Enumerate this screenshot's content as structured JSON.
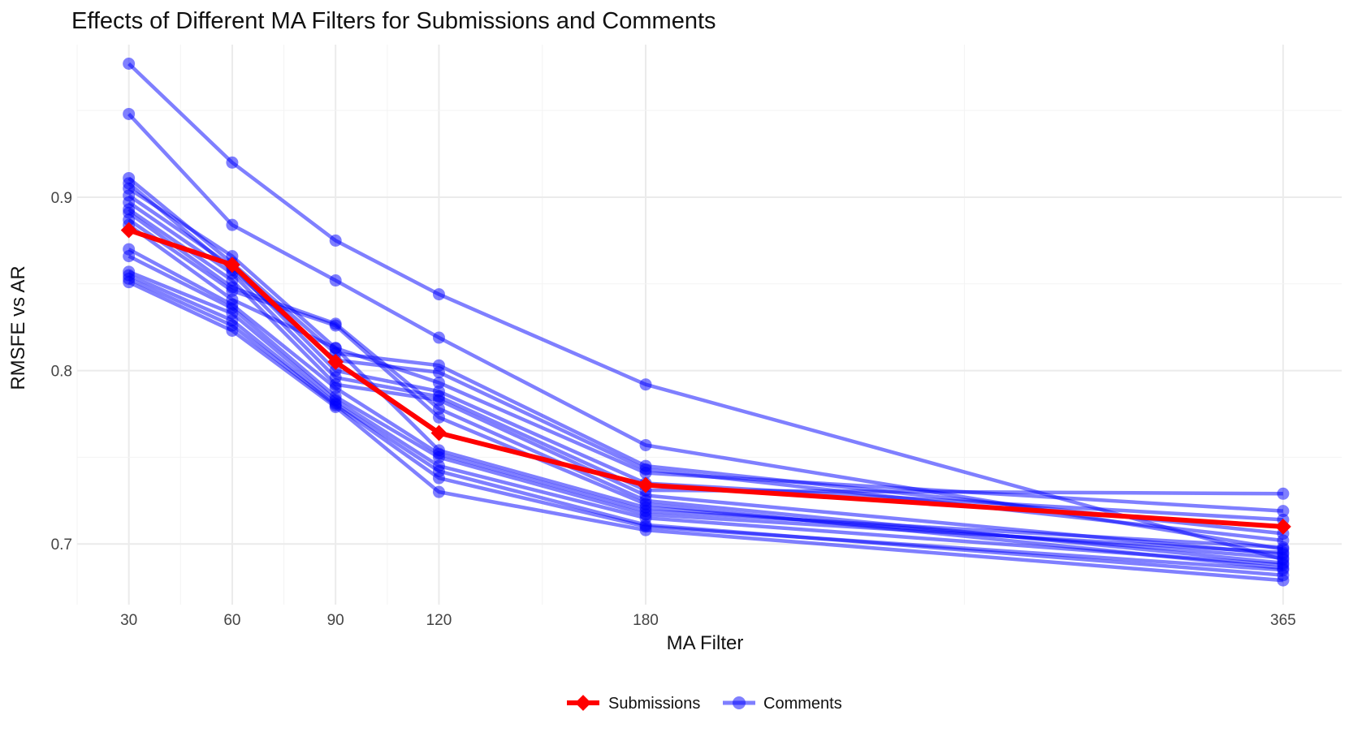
{
  "chart_data": {
    "type": "line",
    "title": "Effects of Different MA Filters for Submissions and Comments",
    "xlabel": "MA Filter",
    "ylabel": "RMSFE vs AR",
    "x": [
      30,
      60,
      90,
      120,
      180,
      365
    ],
    "x_tick_labels": [
      "30",
      "60",
      "90",
      "120",
      "180",
      "365"
    ],
    "xlim": [
      15,
      382
    ],
    "ylim": [
      0.665,
      0.988
    ],
    "y_ticks": [
      0.7,
      0.8,
      0.9
    ],
    "y_tick_labels": [
      "0.7",
      "0.8",
      "0.9"
    ],
    "grid": true,
    "legend_position": "bottom",
    "colors": {
      "submissions": "#ff0000",
      "comments": "#0000ff"
    },
    "submissions": {
      "name": "Submissions",
      "values": [
        0.881,
        0.861,
        0.805,
        0.764,
        0.734,
        0.71
      ]
    },
    "comments": {
      "name": "Comments",
      "series": [
        [
          0.977,
          0.92,
          0.875,
          0.844,
          0.792,
          0.691
        ],
        [
          0.948,
          0.884,
          0.852,
          0.819,
          0.757,
          0.697
        ],
        [
          0.911,
          0.862,
          0.81,
          0.803,
          0.745,
          0.706
        ],
        [
          0.908,
          0.858,
          0.806,
          0.799,
          0.743,
          0.702
        ],
        [
          0.905,
          0.866,
          0.813,
          0.793,
          0.741,
          0.719
        ],
        [
          0.901,
          0.86,
          0.8,
          0.788,
          0.735,
          0.714
        ],
        [
          0.897,
          0.856,
          0.796,
          0.785,
          0.731,
          0.729
        ],
        [
          0.893,
          0.852,
          0.792,
          0.783,
          0.728,
          0.694
        ],
        [
          0.891,
          0.848,
          0.827,
          0.778,
          0.725,
          0.689
        ],
        [
          0.887,
          0.846,
          0.826,
          0.773,
          0.723,
          0.686
        ],
        [
          0.884,
          0.841,
          0.813,
          0.754,
          0.721,
          0.692
        ],
        [
          0.87,
          0.838,
          0.79,
          0.752,
          0.719,
          0.698
        ],
        [
          0.866,
          0.836,
          0.785,
          0.75,
          0.717,
          0.695
        ],
        [
          0.857,
          0.833,
          0.783,
          0.745,
          0.715,
          0.688
        ],
        [
          0.855,
          0.829,
          0.781,
          0.742,
          0.711,
          0.682
        ],
        [
          0.853,
          0.826,
          0.78,
          0.738,
          0.71,
          0.685
        ],
        [
          0.851,
          0.823,
          0.779,
          0.73,
          0.708,
          0.679
        ]
      ]
    }
  }
}
